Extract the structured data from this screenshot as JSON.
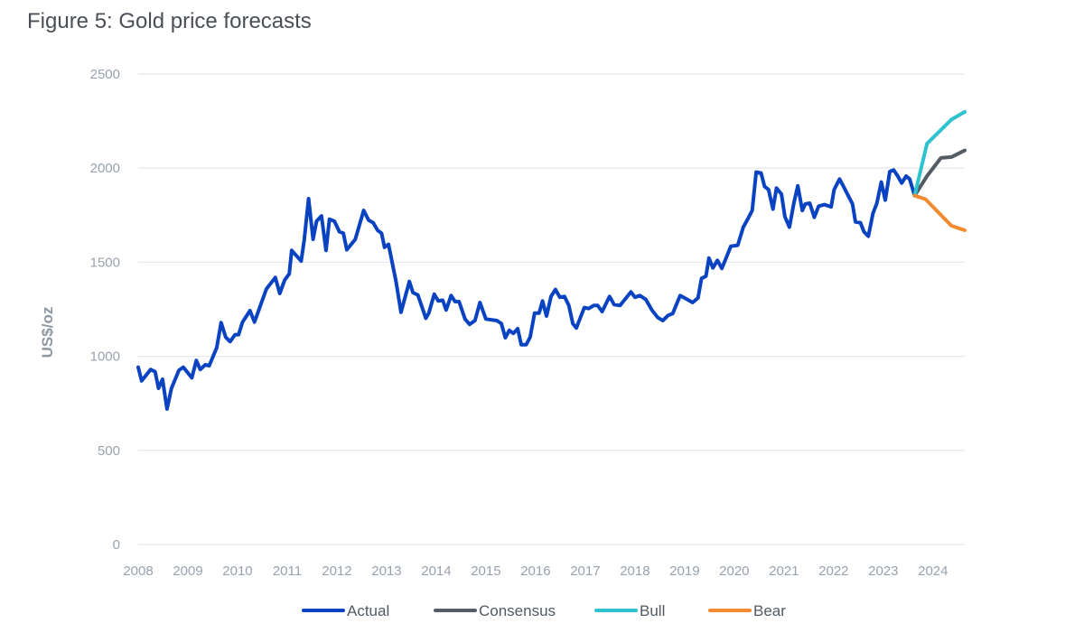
{
  "chart_data": {
    "type": "line",
    "title": "Figure 5: Gold price forecasts",
    "xlabel": "",
    "ylabel": "US$/oz",
    "xlim": [
      2008,
      2024.64
    ],
    "ylim": [
      0,
      2500
    ],
    "x_ticks": [
      "2008",
      "2009",
      "2010",
      "2011",
      "2012",
      "2013",
      "2014",
      "2015",
      "2016",
      "2017",
      "2018",
      "2019",
      "2020",
      "2021",
      "2022",
      "2023",
      "2024"
    ],
    "y_ticks": [
      "0",
      "500",
      "1000",
      "1500",
      "2000",
      "2500"
    ],
    "grid": "horizontal",
    "legend_position": "bottom",
    "series": [
      {
        "name": "Actual",
        "color": "#0a43c2",
        "points": [
          [
            2008.0,
            942
          ],
          [
            2008.07,
            870
          ],
          [
            2008.25,
            930
          ],
          [
            2008.34,
            918
          ],
          [
            2008.41,
            830
          ],
          [
            2008.49,
            878
          ],
          [
            2008.58,
            720
          ],
          [
            2008.67,
            830
          ],
          [
            2008.82,
            926
          ],
          [
            2008.91,
            942
          ],
          [
            2009.08,
            886
          ],
          [
            2009.17,
            978
          ],
          [
            2009.25,
            930
          ],
          [
            2009.35,
            955
          ],
          [
            2009.43,
            950
          ],
          [
            2009.58,
            1046
          ],
          [
            2009.67,
            1179
          ],
          [
            2009.76,
            1102
          ],
          [
            2009.85,
            1078
          ],
          [
            2009.95,
            1115
          ],
          [
            2010.02,
            1115
          ],
          [
            2010.1,
            1182
          ],
          [
            2010.25,
            1243
          ],
          [
            2010.34,
            1182
          ],
          [
            2010.46,
            1270
          ],
          [
            2010.58,
            1358
          ],
          [
            2010.76,
            1419
          ],
          [
            2010.85,
            1334
          ],
          [
            2010.95,
            1406
          ],
          [
            2011.04,
            1438
          ],
          [
            2011.09,
            1563
          ],
          [
            2011.28,
            1506
          ],
          [
            2011.34,
            1614
          ],
          [
            2011.43,
            1838
          ],
          [
            2011.52,
            1622
          ],
          [
            2011.59,
            1718
          ],
          [
            2011.69,
            1746
          ],
          [
            2011.78,
            1563
          ],
          [
            2011.85,
            1729
          ],
          [
            2011.95,
            1718
          ],
          [
            2012.05,
            1662
          ],
          [
            2012.13,
            1654
          ],
          [
            2012.2,
            1566
          ],
          [
            2012.37,
            1622
          ],
          [
            2012.54,
            1775
          ],
          [
            2012.64,
            1723
          ],
          [
            2012.73,
            1710
          ],
          [
            2012.82,
            1670
          ],
          [
            2012.9,
            1654
          ],
          [
            2012.96,
            1579
          ],
          [
            2013.04,
            1595
          ],
          [
            2013.19,
            1398
          ],
          [
            2013.29,
            1234
          ],
          [
            2013.46,
            1398
          ],
          [
            2013.53,
            1339
          ],
          [
            2013.63,
            1326
          ],
          [
            2013.79,
            1202
          ],
          [
            2013.85,
            1230
          ],
          [
            2013.96,
            1330
          ],
          [
            2014.04,
            1294
          ],
          [
            2014.13,
            1298
          ],
          [
            2014.2,
            1246
          ],
          [
            2014.3,
            1323
          ],
          [
            2014.38,
            1291
          ],
          [
            2014.46,
            1291
          ],
          [
            2014.58,
            1198
          ],
          [
            2014.67,
            1170
          ],
          [
            2014.78,
            1190
          ],
          [
            2014.88,
            1286
          ],
          [
            2015.0,
            1198
          ],
          [
            2015.22,
            1190
          ],
          [
            2015.31,
            1174
          ],
          [
            2015.39,
            1099
          ],
          [
            2015.47,
            1138
          ],
          [
            2015.55,
            1122
          ],
          [
            2015.64,
            1147
          ],
          [
            2015.71,
            1062
          ],
          [
            2015.81,
            1062
          ],
          [
            2015.89,
            1102
          ],
          [
            2015.98,
            1230
          ],
          [
            2016.07,
            1230
          ],
          [
            2016.14,
            1294
          ],
          [
            2016.22,
            1214
          ],
          [
            2016.31,
            1318
          ],
          [
            2016.4,
            1355
          ],
          [
            2016.49,
            1314
          ],
          [
            2016.58,
            1318
          ],
          [
            2016.67,
            1270
          ],
          [
            2016.75,
            1174
          ],
          [
            2016.82,
            1150
          ],
          [
            2016.98,
            1259
          ],
          [
            2017.07,
            1254
          ],
          [
            2017.17,
            1270
          ],
          [
            2017.25,
            1270
          ],
          [
            2017.34,
            1238
          ],
          [
            2017.49,
            1318
          ],
          [
            2017.58,
            1275
          ],
          [
            2017.7,
            1270
          ],
          [
            2017.92,
            1342
          ],
          [
            2018.0,
            1314
          ],
          [
            2018.1,
            1323
          ],
          [
            2018.22,
            1302
          ],
          [
            2018.34,
            1246
          ],
          [
            2018.46,
            1206
          ],
          [
            2018.56,
            1190
          ],
          [
            2018.67,
            1218
          ],
          [
            2018.76,
            1227
          ],
          [
            2018.91,
            1323
          ],
          [
            2019.0,
            1310
          ],
          [
            2019.16,
            1286
          ],
          [
            2019.27,
            1310
          ],
          [
            2019.34,
            1414
          ],
          [
            2019.43,
            1426
          ],
          [
            2019.49,
            1522
          ],
          [
            2019.57,
            1470
          ],
          [
            2019.66,
            1510
          ],
          [
            2019.75,
            1467
          ],
          [
            2019.84,
            1526
          ],
          [
            2019.93,
            1585
          ],
          [
            2020.07,
            1590
          ],
          [
            2020.18,
            1686
          ],
          [
            2020.28,
            1734
          ],
          [
            2020.36,
            1775
          ],
          [
            2020.44,
            1979
          ],
          [
            2020.54,
            1974
          ],
          [
            2020.61,
            1902
          ],
          [
            2020.69,
            1886
          ],
          [
            2020.78,
            1782
          ],
          [
            2020.85,
            1894
          ],
          [
            2020.95,
            1862
          ],
          [
            2021.02,
            1742
          ],
          [
            2021.11,
            1686
          ],
          [
            2021.2,
            1814
          ],
          [
            2021.28,
            1906
          ],
          [
            2021.37,
            1775
          ],
          [
            2021.43,
            1810
          ],
          [
            2021.52,
            1814
          ],
          [
            2021.61,
            1739
          ],
          [
            2021.7,
            1798
          ],
          [
            2021.82,
            1806
          ],
          [
            2021.95,
            1794
          ],
          [
            2022.01,
            1886
          ],
          [
            2022.12,
            1942
          ],
          [
            2022.2,
            1902
          ],
          [
            2022.3,
            1851
          ],
          [
            2022.38,
            1810
          ],
          [
            2022.44,
            1714
          ],
          [
            2022.54,
            1710
          ],
          [
            2022.61,
            1662
          ],
          [
            2022.7,
            1638
          ],
          [
            2022.79,
            1758
          ],
          [
            2022.87,
            1814
          ],
          [
            2022.96,
            1926
          ],
          [
            2023.04,
            1830
          ],
          [
            2023.13,
            1982
          ],
          [
            2023.21,
            1990
          ],
          [
            2023.29,
            1958
          ],
          [
            2023.37,
            1921
          ],
          [
            2023.46,
            1958
          ],
          [
            2023.53,
            1942
          ],
          [
            2023.63,
            1854
          ]
        ]
      },
      {
        "name": "Consensus",
        "color": "#545d66",
        "points": [
          [
            2023.63,
            1854
          ],
          [
            2023.88,
            1958
          ],
          [
            2024.16,
            2054
          ],
          [
            2024.37,
            2059
          ],
          [
            2024.64,
            2094
          ]
        ]
      },
      {
        "name": "Bull",
        "color": "#2ec3cf",
        "points": [
          [
            2023.63,
            1854
          ],
          [
            2023.88,
            2130
          ],
          [
            2024.37,
            2258
          ],
          [
            2024.64,
            2299
          ]
        ]
      },
      {
        "name": "Bear",
        "color": "#f28a2e",
        "points": [
          [
            2023.63,
            1854
          ],
          [
            2023.85,
            1835
          ],
          [
            2024.37,
            1694
          ],
          [
            2024.64,
            1670
          ]
        ]
      }
    ]
  }
}
